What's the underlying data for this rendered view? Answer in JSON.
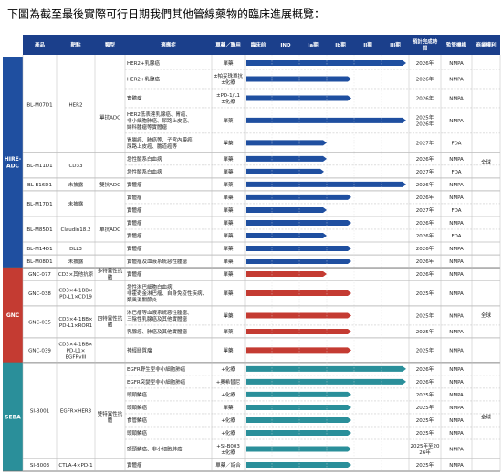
{
  "title": "下圖為截至最後實際可行日期我們其他管線藥物的臨床進展概覽：",
  "chart_data": {
    "type": "pipeline",
    "columns": [
      "產品",
      "靶點",
      "類型",
      "適應症",
      "單藥／聯用",
      "臨床前",
      "IND",
      "Ia期",
      "Ib期",
      "II期",
      "III期",
      "預計完成時間",
      "監管機構",
      "商業權利"
    ],
    "xlim": [
      0,
      6
    ],
    "groups": [
      {
        "name": "HIRE-ADC",
        "color": "#1f4fa0",
        "rights": "全球",
        "types": [
          {
            "label": "單抗ADC",
            "products": [
              {
                "name": "BL-M07D1",
                "target": "HER2",
                "rows": [
                  {
                    "indication": "HER2+乳腺癌",
                    "regimen": "單藥",
                    "progress": 5.9,
                    "completion": "2026年",
                    "regulator": "NMPA"
                  },
                  {
                    "indication": "HER2+乳腺癌",
                    "regimen": "±帕妥珠單抗 ±化療",
                    "progress": 3.9,
                    "completion": "2026年",
                    "regulator": "NMPA"
                  },
                  {
                    "indication": "實體瘤",
                    "regimen": "±PD-1/L1 ±化療",
                    "progress": 3.9,
                    "completion": "2026年",
                    "regulator": "NMPA"
                  },
                  {
                    "indication": "HER2低表達乳腺癌、胃癌、非小細胞肺癌、尿路上皮癌、婦科腫瘤等實體瘤",
                    "regimen": "單藥",
                    "progress": 5.9,
                    "completion": "2025年 2026年",
                    "regulator": "NMPA"
                  },
                  {
                    "indication": "胃腸癌、肺癌等、子宮內膜癌、尿路上皮癌、膽道癌等",
                    "regimen": "單藥",
                    "progress": 3.0,
                    "completion": "2027年",
                    "regulator": "FDA"
                  }
                ]
              },
              {
                "name": "BL-M11D1",
                "target": "CD33",
                "rows": [
                  {
                    "indication": "急性髓系白血病",
                    "regimen": "單藥",
                    "progress": 3.0,
                    "completion": "2026年",
                    "regulator": "NMPA"
                  },
                  {
                    "indication": "急性髓系白血病",
                    "regimen": "單藥",
                    "progress": 2.9,
                    "completion": "2027年",
                    "regulator": "FDA"
                  }
                ]
              }
            ]
          },
          {
            "label": "雙抗ADC",
            "products": [
              {
                "name": "BL-B16D1",
                "target": "未披露",
                "rows": [
                  {
                    "indication": "實體瘤",
                    "regimen": "單藥",
                    "progress": 5.9,
                    "completion": "2026年",
                    "regulator": "NMPA"
                  }
                ]
              }
            ]
          },
          {
            "label": "單抗ADC",
            "products": [
              {
                "name": "BL-M17D1",
                "target": "未披露",
                "rows": [
                  {
                    "indication": "實體瘤",
                    "regimen": "單藥",
                    "progress": 3.9,
                    "completion": "2026年",
                    "regulator": "NMPA"
                  },
                  {
                    "indication": "實體瘤",
                    "regimen": "單藥",
                    "progress": 3.0,
                    "completion": "2027年",
                    "regulator": "FDA"
                  }
                ]
              },
              {
                "name": "BL-M85D1",
                "target": "Claudin18.2",
                "rows": [
                  {
                    "indication": "實體瘤",
                    "regimen": "單藥",
                    "progress": 3.9,
                    "completion": "2026年",
                    "regulator": "NMPA"
                  },
                  {
                    "indication": "實體瘤",
                    "regimen": "單藥",
                    "progress": 3.0,
                    "completion": "2026年",
                    "regulator": "FDA"
                  }
                ]
              },
              {
                "name": "BL-M14D1",
                "target": "DLL3",
                "rows": [
                  {
                    "indication": "實體瘤",
                    "regimen": "單藥",
                    "progress": 3.9,
                    "completion": "2026年",
                    "regulator": "NMPA"
                  }
                ]
              },
              {
                "name": "BL-M08D1",
                "target": "未披露",
                "rows": [
                  {
                    "indication": "實體瘤及血液系統惡性腫瘤",
                    "regimen": "單藥",
                    "progress": 3.9,
                    "completion": "2026年",
                    "regulator": "NMPA"
                  }
                ]
              }
            ]
          }
        ]
      },
      {
        "name": "GNC",
        "color": "#c43b32",
        "rights": "全球",
        "types": [
          {
            "label": "多特異性抗體",
            "products": [
              {
                "name": "GNC-077",
                "target": "CD3×其他抗原",
                "rows": [
                  {
                    "indication": "實體瘤",
                    "regimen": "單藥",
                    "progress": 3.0,
                    "completion": "2026年",
                    "regulator": "NMPA"
                  }
                ]
              }
            ]
          },
          {
            "label": "四特異性抗體",
            "products": [
              {
                "name": "GNC-038",
                "target": "CD3×4-1BB×PD-L1×CD19",
                "rows": [
                  {
                    "indication": "急性淋巴細胞白血病、非霍奇金淋巴瘤、自身免疫性疾病、類風濕關節炎",
                    "regimen": "單藥",
                    "progress": 3.9,
                    "completion": "2025年",
                    "regulator": "NMPA"
                  }
                ]
              },
              {
                "name": "GNC-035",
                "target": "CD3×4-1BB×PD-L1×ROR1",
                "rows": [
                  {
                    "indication": "淋巴瘤等血液系統惡性腫瘤、三陰性乳腺癌及其他實體瘤",
                    "regimen": "單藥",
                    "progress": 3.9,
                    "completion": "2025年",
                    "regulator": "NMPA"
                  },
                  {
                    "indication": "乳腺癌、肺癌及其他實體瘤",
                    "regimen": "單藥",
                    "progress": 3.9,
                    "completion": "2025年",
                    "regulator": "NMPA"
                  }
                ]
              },
              {
                "name": "GNC-039",
                "target": "CD3×4-1BB×PD-L1×EGFRvIII",
                "rows": [
                  {
                    "indication": "神經膠質瘤",
                    "regimen": "單藥",
                    "progress": 3.9,
                    "completion": "2025年",
                    "regulator": "NMPA"
                  }
                ]
              }
            ]
          }
        ]
      },
      {
        "name": "SEBA",
        "color": "#2a8f9a",
        "rights": "全球",
        "types": [
          {
            "label": "雙特異性抗體",
            "products": [
              {
                "name": "SI-B001",
                "target": "EGFR×HER3",
                "rows": [
                  {
                    "indication": "EGFR野生型非小細胞肺癌",
                    "regimen": "+化療",
                    "progress": 5.9,
                    "completion": "2026年",
                    "regulator": "NMPA"
                  },
                  {
                    "indication": "EGFR突變型非小細胞肺癌",
                    "regimen": "+奧希替尼",
                    "progress": 5.9,
                    "completion": "2026年",
                    "regulator": "NMPA"
                  },
                  {
                    "indication": "頭頸鱗癌",
                    "regimen": "+化療",
                    "progress": 3.9,
                    "completion": "2025年",
                    "regulator": "NMPA"
                  },
                  {
                    "indication": "頭頸鱗癌",
                    "regimen": "單藥",
                    "progress": 3.9,
                    "completion": "2025年",
                    "regulator": "NMPA"
                  },
                  {
                    "indication": "食管鱗癌",
                    "regimen": "+化療",
                    "progress": 3.9,
                    "completion": "2025年",
                    "regulator": "NMPA"
                  },
                  {
                    "indication": "頭頸鱗癌",
                    "regimen": "+化療",
                    "progress": 3.9,
                    "completion": "2025年",
                    "regulator": "NMPA"
                  },
                  {
                    "indication": "頭頸鱗癌、非小細胞肺癌",
                    "regimen": "+SI-B003 ±化療",
                    "progress": 3.9,
                    "completion": "2025年至2026年",
                    "regulator": "NMPA"
                  }
                ]
              },
              {
                "name": "SI-B003",
                "target": "CTLA-4×PD-1",
                "rows": [
                  {
                    "indication": "實體瘤",
                    "regimen": "單藥／綜合",
                    "progress": 3.9,
                    "completion": "2025年",
                    "regulator": "NMPA"
                  }
                ]
              }
            ]
          }
        ]
      }
    ]
  }
}
